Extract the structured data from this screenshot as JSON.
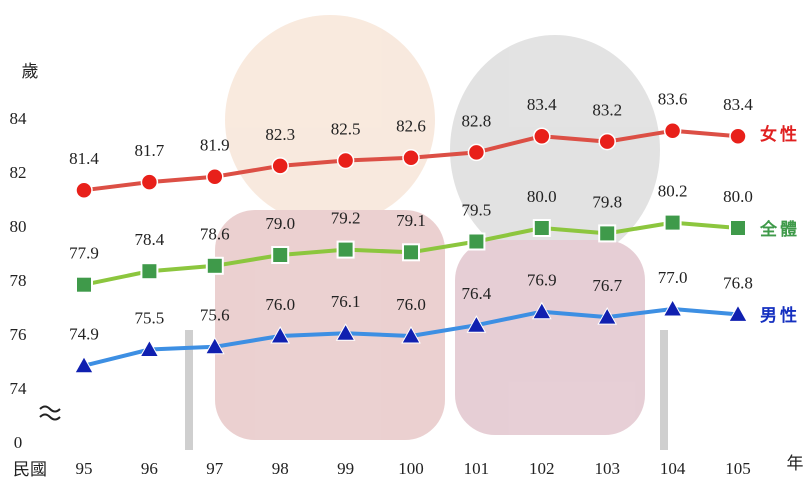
{
  "chart_data": {
    "type": "line",
    "y_label": "歲",
    "x_label": "年",
    "x_prefix": "民國",
    "categories": [
      "95",
      "96",
      "97",
      "98",
      "99",
      "100",
      "101",
      "102",
      "103",
      "104",
      "105"
    ],
    "series": [
      {
        "name": "女性",
        "color": "#dc4f45",
        "marker": "circle",
        "values": [
          81.4,
          81.7,
          81.9,
          82.3,
          82.5,
          82.6,
          82.8,
          83.4,
          83.2,
          83.6,
          83.4
        ],
        "value_labels": [
          "81.4",
          "81.7",
          "81.9",
          "82.3",
          "82.5",
          "82.6",
          "82.8",
          "83.4",
          "83.2",
          "83.6",
          "83.4"
        ]
      },
      {
        "name": "全體",
        "color": "#8cc63e",
        "marker": "square",
        "values": [
          77.9,
          78.4,
          78.6,
          79.0,
          79.2,
          79.1,
          79.5,
          80.0,
          79.8,
          80.2,
          80.0
        ],
        "value_labels": [
          "77.9",
          "78.4",
          "78.6",
          "79.0",
          "79.2",
          "79.1",
          "79.5",
          "80.0",
          "79.8",
          "80.2",
          "80.0"
        ]
      },
      {
        "name": "男性",
        "color": "#3d8fe3",
        "marker": "triangle",
        "values": [
          74.9,
          75.5,
          75.6,
          76.0,
          76.1,
          76.0,
          76.4,
          76.9,
          76.7,
          77.0,
          76.8
        ],
        "value_labels": [
          "74.9",
          "75.5",
          "75.6",
          "76.0",
          "76.1",
          "76.0",
          "76.4",
          "76.9",
          "76.7",
          "77.0",
          "76.8"
        ]
      }
    ],
    "ylim": [
      72,
      84
    ],
    "yticks": [
      0,
      74,
      76,
      78,
      80,
      82,
      84
    ],
    "axis_break": true
  }
}
